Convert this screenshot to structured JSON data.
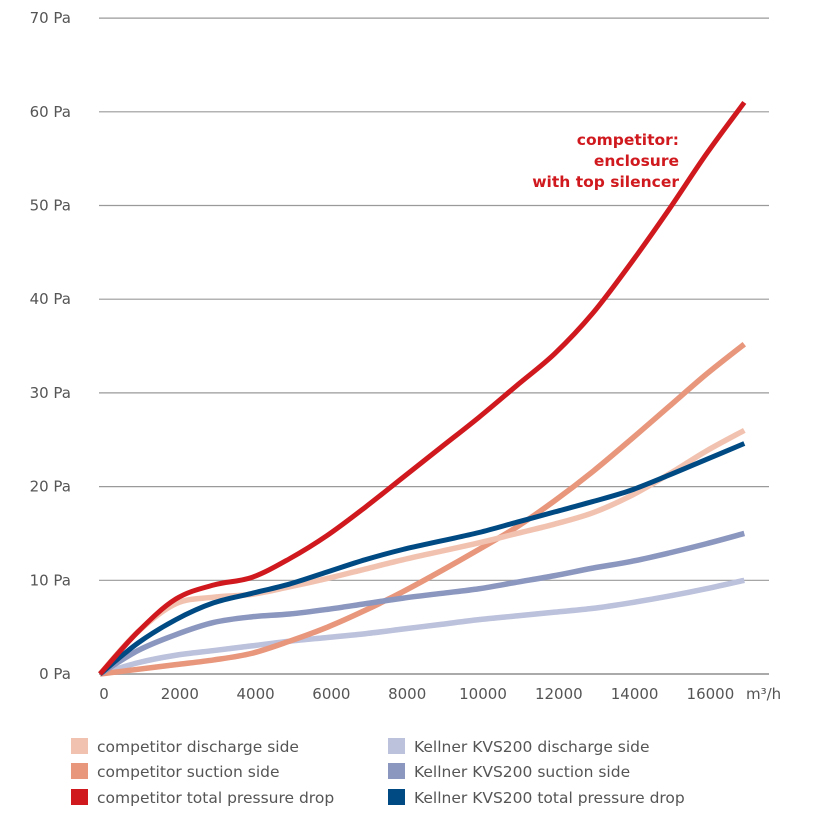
{
  "chart_data": {
    "type": "line",
    "title": "",
    "xlabel": "m³/h",
    "ylabel": "",
    "xlim": [
      0,
      17000
    ],
    "ylim": [
      0,
      70
    ],
    "grid": true,
    "y_ticks": [
      0,
      10,
      20,
      30,
      40,
      50,
      60,
      70
    ],
    "y_tick_labels": [
      "0 Pa",
      "10 Pa",
      "20 Pa",
      "30 Pa",
      "40 Pa",
      "50 Pa",
      "60 Pa",
      "70 Pa"
    ],
    "x_ticks": [
      0,
      2000,
      4000,
      6000,
      8000,
      10000,
      12000,
      14000,
      16000
    ],
    "x_tick_labels": [
      "0",
      "2000",
      "4000",
      "6000",
      "8000",
      "10000",
      "12000",
      "14000",
      "16000"
    ],
    "x_unit_label": "m³/h",
    "annotation": {
      "lines": [
        "competitor:",
        "enclosure",
        "with top silencer"
      ],
      "color": "#d0191e",
      "anchor_series": "competitor total pressure drop"
    },
    "legend_placement": "bottom",
    "x": [
      0,
      1000,
      2000,
      3000,
      4000,
      5000,
      6000,
      7000,
      8000,
      9000,
      10000,
      11000,
      12000,
      13000,
      14000,
      15000,
      16000,
      17000
    ],
    "series": [
      {
        "name": "competitor discharge side",
        "color": "#f2c2b0",
        "values": [
          0,
          4.5,
          7.5,
          8.2,
          8.5,
          9.3,
          10.2,
          11.2,
          12.2,
          13.1,
          14.0,
          15.0,
          16.0,
          17.2,
          19.0,
          21.3,
          23.8,
          26.0
        ]
      },
      {
        "name": "competitor suction side",
        "color": "#e8967c",
        "values": [
          0,
          0.5,
          1.0,
          1.5,
          2.2,
          3.5,
          5.0,
          6.8,
          8.8,
          11.0,
          13.3,
          15.7,
          18.5,
          21.6,
          25.0,
          28.5,
          32.0,
          35.2
        ]
      },
      {
        "name": "competitor total pressure drop",
        "color": "#d0191e",
        "values": [
          0,
          4.5,
          8.0,
          9.5,
          10.3,
          12.3,
          14.8,
          17.8,
          21.0,
          24.2,
          27.4,
          30.8,
          34.2,
          38.5,
          43.8,
          49.5,
          55.5,
          61.0
        ]
      },
      {
        "name": "Kellner KVS200 discharge side",
        "color": "#bcc1dc",
        "values": [
          0,
          1.2,
          2.0,
          2.5,
          3.0,
          3.5,
          3.9,
          4.3,
          4.8,
          5.3,
          5.8,
          6.2,
          6.6,
          7.0,
          7.6,
          8.3,
          9.1,
          10.0
        ]
      },
      {
        "name": "Kellner KVS200 suction side",
        "color": "#8c97bf",
        "values": [
          0,
          2.5,
          4.2,
          5.5,
          6.1,
          6.4,
          6.9,
          7.5,
          8.1,
          8.6,
          9.1,
          9.8,
          10.5,
          11.3,
          12.0,
          12.9,
          13.9,
          15.0
        ]
      },
      {
        "name": "Kellner KVS200 total pressure drop",
        "color": "#004a84",
        "values": [
          0,
          3.3,
          5.8,
          7.6,
          8.6,
          9.6,
          10.9,
          12.2,
          13.3,
          14.2,
          15.1,
          16.2,
          17.3,
          18.4,
          19.6,
          21.2,
          22.9,
          24.6
        ]
      }
    ],
    "draw_order": [
      "Kellner KVS200 discharge side",
      "competitor suction side",
      "Kellner KVS200 suction side",
      "competitor discharge side",
      "Kellner KVS200 total pressure drop",
      "competitor total pressure drop"
    ]
  },
  "legend": {
    "items": [
      {
        "label": "competitor discharge side",
        "color": "#f2c2b0"
      },
      {
        "label": "competitor suction side",
        "color": "#e8967c"
      },
      {
        "label": "competitor total pressure drop",
        "color": "#d0191e"
      },
      {
        "label": "Kellner KVS200 discharge side",
        "color": "#bcc1dc"
      },
      {
        "label": "Kellner KVS200 suction side",
        "color": "#8c97bf"
      },
      {
        "label": "Kellner KVS200 total pressure drop",
        "color": "#004a84"
      }
    ]
  },
  "colors": {
    "grid": "#9a9a9a",
    "axis_text": "#555555",
    "accent_red": "#d0191e"
  }
}
